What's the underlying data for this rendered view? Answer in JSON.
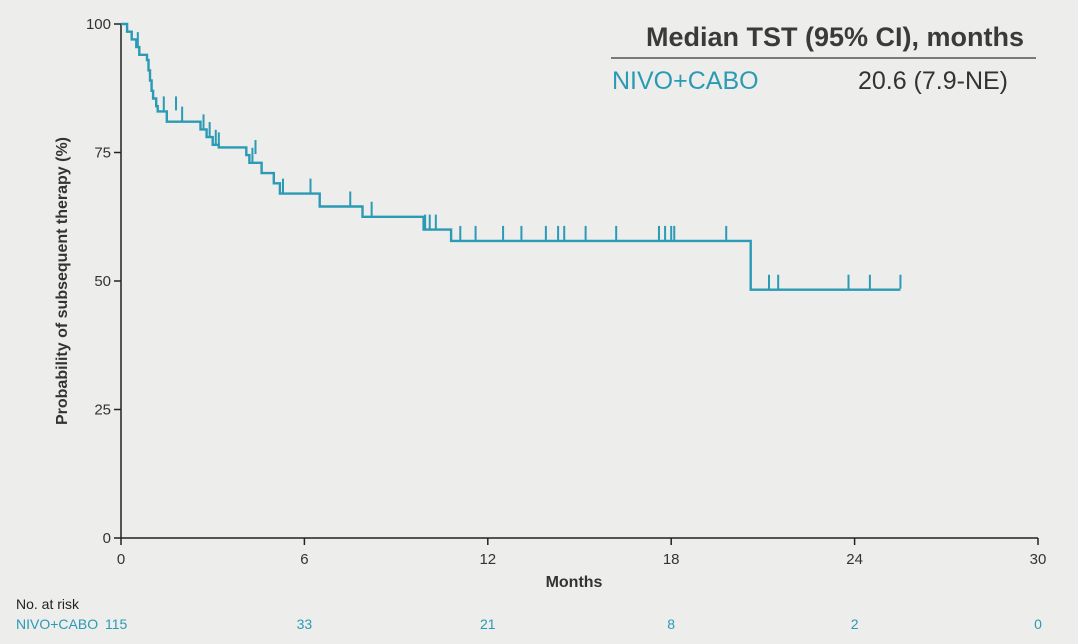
{
  "chart_data": {
    "type": "line",
    "title": "",
    "xlabel": "Months",
    "ylabel": "Probability of subsequent therapy (%)",
    "xlim": [
      0,
      30
    ],
    "ylim": [
      0,
      100
    ],
    "x_ticks": [
      0,
      6,
      12,
      18,
      24,
      30
    ],
    "y_ticks": [
      0,
      25,
      50,
      75,
      100
    ],
    "grid": false,
    "legend": {
      "placement": "top-right",
      "header": "Median TST (95% CI), months",
      "entries": [
        {
          "name": "NIVO+CABO",
          "value": "20.6 (7.9-NE)"
        }
      ]
    },
    "series": [
      {
        "name": "NIVO+CABO",
        "color": "#2a9ab5",
        "step_points": [
          [
            0,
            100
          ],
          [
            0.2,
            100
          ],
          [
            0.2,
            98.5
          ],
          [
            0.35,
            98.5
          ],
          [
            0.35,
            97
          ],
          [
            0.5,
            97
          ],
          [
            0.5,
            95.5
          ],
          [
            0.6,
            95.5
          ],
          [
            0.6,
            94
          ],
          [
            0.85,
            94
          ],
          [
            0.85,
            93
          ],
          [
            0.9,
            93
          ],
          [
            0.9,
            91
          ],
          [
            0.95,
            91
          ],
          [
            0.95,
            89
          ],
          [
            1.0,
            89
          ],
          [
            1.0,
            87
          ],
          [
            1.05,
            87
          ],
          [
            1.05,
            85.5
          ],
          [
            1.15,
            85.5
          ],
          [
            1.15,
            84
          ],
          [
            1.2,
            84
          ],
          [
            1.2,
            83
          ],
          [
            1.5,
            83
          ],
          [
            1.5,
            81
          ],
          [
            2.6,
            81
          ],
          [
            2.6,
            79.5
          ],
          [
            2.8,
            79.5
          ],
          [
            2.8,
            78
          ],
          [
            3.0,
            78
          ],
          [
            3.0,
            76.5
          ],
          [
            3.2,
            76.5
          ],
          [
            3.2,
            76
          ],
          [
            4.1,
            76
          ],
          [
            4.1,
            74.5
          ],
          [
            4.2,
            74.5
          ],
          [
            4.2,
            73
          ],
          [
            4.6,
            73
          ],
          [
            4.6,
            71
          ],
          [
            5.0,
            71
          ],
          [
            5.0,
            69
          ],
          [
            5.2,
            69
          ],
          [
            5.2,
            67
          ],
          [
            6.5,
            67
          ],
          [
            6.5,
            64.5
          ],
          [
            7.9,
            64.5
          ],
          [
            7.9,
            62.5
          ],
          [
            9.9,
            62.5
          ],
          [
            9.9,
            60
          ],
          [
            10.8,
            60
          ],
          [
            10.8,
            57.8
          ],
          [
            20.6,
            57.8
          ],
          [
            20.6,
            48.3
          ],
          [
            25.5,
            48.3
          ]
        ],
        "censor_marks": [
          [
            0.55,
            95.5
          ],
          [
            1.4,
            83
          ],
          [
            1.8,
            83
          ],
          [
            2.0,
            81
          ],
          [
            2.7,
            79.5
          ],
          [
            2.9,
            78
          ],
          [
            3.1,
            76.5
          ],
          [
            3.2,
            76
          ],
          [
            4.3,
            73
          ],
          [
            4.4,
            74.5
          ],
          [
            5.3,
            67
          ],
          [
            6.2,
            67
          ],
          [
            7.5,
            64.5
          ],
          [
            8.2,
            62.5
          ],
          [
            9.95,
            60
          ],
          [
            10.1,
            60
          ],
          [
            10.3,
            60
          ],
          [
            11.1,
            57.8
          ],
          [
            11.6,
            57.8
          ],
          [
            12.5,
            57.8
          ],
          [
            13.1,
            57.8
          ],
          [
            13.9,
            57.8
          ],
          [
            14.3,
            57.8
          ],
          [
            14.5,
            57.8
          ],
          [
            15.2,
            57.8
          ],
          [
            16.2,
            57.8
          ],
          [
            17.6,
            57.8
          ],
          [
            17.8,
            57.8
          ],
          [
            18.0,
            57.8
          ],
          [
            18.1,
            57.8
          ],
          [
            19.8,
            57.8
          ],
          [
            21.2,
            48.3
          ],
          [
            21.5,
            48.3
          ],
          [
            23.8,
            48.3
          ],
          [
            24.5,
            48.3
          ],
          [
            25.5,
            48.3
          ]
        ]
      }
    ],
    "at_risk": {
      "title": "No. at risk",
      "rows": [
        {
          "name": "NIVO+CABO",
          "values": [
            115,
            33,
            21,
            8,
            2,
            0
          ]
        }
      ]
    }
  },
  "colors": {
    "series": "#2a9ab5",
    "axis": "#222222",
    "text": "#333333",
    "background": "#ededeb"
  }
}
